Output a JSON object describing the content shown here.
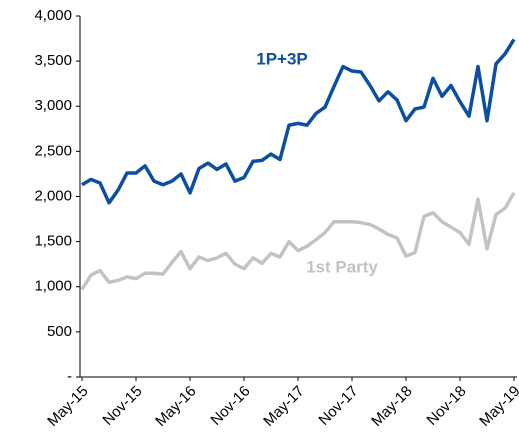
{
  "chart_data": {
    "type": "line",
    "categories": [
      "May-15",
      null,
      null,
      null,
      null,
      null,
      "Nov-15",
      null,
      null,
      null,
      null,
      null,
      "May-16",
      null,
      null,
      null,
      null,
      null,
      "Nov-16",
      null,
      null,
      null,
      null,
      null,
      "May-17",
      null,
      null,
      null,
      null,
      null,
      "Nov-17",
      null,
      null,
      null,
      null,
      null,
      "May-18",
      null,
      null,
      null,
      null,
      null,
      "Nov-18",
      null,
      null,
      null,
      null,
      null,
      "May-19"
    ],
    "series": [
      {
        "name": "1P+3P",
        "color": "#0b4ea2",
        "values": [
          2130,
          2190,
          2150,
          1930,
          2070,
          2260,
          2260,
          2340,
          2170,
          2130,
          2170,
          2250,
          2040,
          2310,
          2370,
          2300,
          2360,
          2170,
          2210,
          2390,
          2400,
          2470,
          2410,
          2790,
          2810,
          2790,
          2920,
          2990,
          3220,
          3440,
          3390,
          3380,
          3230,
          3060,
          3160,
          3070,
          2840,
          2970,
          2990,
          3310,
          3110,
          3230,
          3050,
          2890,
          3440,
          2840,
          3470,
          3580,
          3740
        ]
      },
      {
        "name": "1st Party",
        "color": "#c3c3c3",
        "values": [
          970,
          1130,
          1180,
          1050,
          1070,
          1110,
          1090,
          1150,
          1150,
          1140,
          1270,
          1390,
          1200,
          1330,
          1290,
          1320,
          1370,
          1250,
          1200,
          1320,
          1260,
          1370,
          1330,
          1500,
          1400,
          1450,
          1520,
          1600,
          1720,
          1720,
          1720,
          1710,
          1690,
          1640,
          1580,
          1540,
          1340,
          1380,
          1780,
          1820,
          1720,
          1660,
          1600,
          1470,
          1970,
          1420,
          1800,
          1870,
          2040
        ]
      }
    ],
    "ylim": [
      0,
      4000
    ],
    "yticks": [
      {
        "value": 0,
        "label": "-"
      },
      500,
      {
        "value": 1000,
        "label": "1,000"
      },
      {
        "value": 1500,
        "label": "1,500"
      },
      {
        "value": 2000,
        "label": "2,000"
      },
      {
        "value": 2500,
        "label": "2,500"
      },
      {
        "value": 3000,
        "label": "3,000"
      },
      {
        "value": 3500,
        "label": "3,500"
      },
      {
        "value": 4000,
        "label": "4,000"
      }
    ],
    "grid": false
  }
}
